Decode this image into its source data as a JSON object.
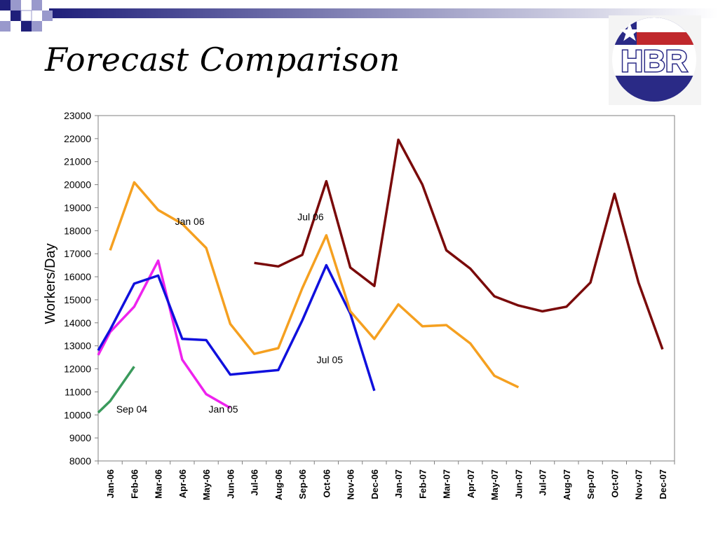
{
  "slide": {
    "title": "Forecast Comparison",
    "logo_text": "HBR"
  },
  "colors": {
    "deco_dark": "#1f1f7a",
    "deco_light": "#9999cc",
    "logo_blue": "#2a2a86",
    "logo_red": "#c0282c"
  },
  "chart_data": {
    "type": "line",
    "title": "",
    "xlabel": "",
    "ylabel": "Workers/Day",
    "ylim": [
      8000,
      23000
    ],
    "yticks": [
      8000,
      9000,
      10000,
      11000,
      12000,
      13000,
      14000,
      15000,
      16000,
      17000,
      18000,
      19000,
      20000,
      21000,
      22000,
      23000
    ],
    "grid": false,
    "categories": [
      "Jan-06",
      "Feb-06",
      "Mar-06",
      "Apr-06",
      "May-06",
      "Jun-06",
      "Jul-06",
      "Aug-06",
      "Sep-06",
      "Oct-06",
      "Nov-06",
      "Dec-06",
      "Jan-07",
      "Feb-07",
      "Mar-07",
      "Apr-07",
      "May-07",
      "Jun-07",
      "Jul-07",
      "Aug-07",
      "Sep-07",
      "Oct-07",
      "Nov-07",
      "Dec-07"
    ],
    "series": [
      {
        "color": "#3a9a5c",
        "x": [
          -0.5,
          0,
          1
        ],
        "values": [
          10100,
          10600,
          12100
        ]
      },
      {
        "color": "#ee22ee",
        "x": [
          -0.5,
          0,
          1,
          2,
          3,
          4,
          5
        ],
        "values": [
          12600,
          13600,
          14700,
          16700,
          12400,
          10900,
          10300
        ]
      },
      {
        "color": "#1010dd",
        "x": [
          -0.5,
          0,
          1,
          2,
          3,
          4,
          5,
          6,
          7,
          8,
          9,
          10,
          11
        ],
        "values": [
          12800,
          13700,
          15700,
          16050,
          13300,
          13250,
          11750,
          11850,
          11950,
          14100,
          16500,
          14400,
          11050
        ]
      },
      {
        "color": "#f5a020",
        "x": [
          0,
          1,
          2,
          3,
          4,
          5,
          6,
          7,
          8,
          9,
          10,
          11,
          12,
          13,
          14,
          15,
          16,
          17
        ],
        "values": [
          17150,
          20100,
          18900,
          18300,
          17250,
          13950,
          12650,
          12900,
          15500,
          17800,
          14500,
          13300,
          14800,
          13850,
          13900,
          13100,
          11700,
          11200
        ]
      },
      {
        "color": "#7a0a0a",
        "x": [
          6,
          7,
          8,
          9,
          10,
          11,
          12,
          13,
          14,
          15,
          16,
          17,
          18,
          19,
          20,
          21,
          22,
          23
        ],
        "values": [
          16600,
          16450,
          16950,
          20150,
          16400,
          15600,
          21950,
          20000,
          17150,
          16350,
          15150,
          14750,
          14500,
          14700,
          15750,
          19600,
          15750,
          12850
        ]
      }
    ],
    "annotations": [
      {
        "text": "Sep 04",
        "x": 0.25,
        "y": 10100
      },
      {
        "text": "Jan 05",
        "x": 4.1,
        "y": 10100
      },
      {
        "text": "Jul 05",
        "x": 8.6,
        "y": 12250
      },
      {
        "text": "Jan 06",
        "x": 2.7,
        "y": 18250
      },
      {
        "text": "Jul 06",
        "x": 7.8,
        "y": 18450
      }
    ]
  }
}
